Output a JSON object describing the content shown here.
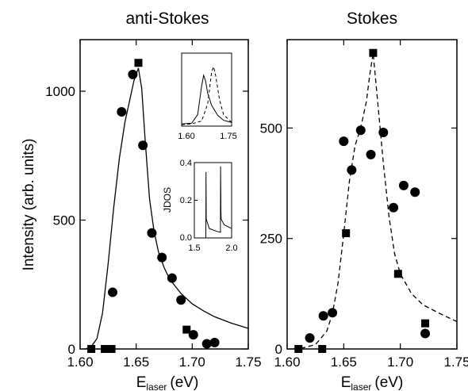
{
  "figure": {
    "ylabel": "Intensity (arb. units)",
    "inset_ylabel": "JDOS"
  },
  "chart_data": [
    {
      "type": "scatter",
      "title": "anti-Stokes",
      "xlabel": "E_laser (eV)",
      "xlabel_main": "E",
      "xlabel_sub": "laser",
      "xlabel_unit": "(eV)",
      "ylabel": "Intensity (arb. units)",
      "xlim": [
        1.6,
        1.75
      ],
      "ylim": [
        0,
        1200
      ],
      "xticks": [
        "1.60",
        "1.65",
        "1.70",
        "1.75"
      ],
      "yticks": [
        "0",
        "500",
        "1000"
      ],
      "series": [
        {
          "marker": "circle",
          "x": [
            1.629,
            1.637,
            1.647,
            1.656,
            1.664,
            1.673,
            1.682,
            1.69,
            1.701,
            1.713,
            1.72
          ],
          "y": [
            220,
            920,
            1065,
            790,
            450,
            355,
            275,
            190,
            55,
            20,
            25
          ]
        },
        {
          "marker": "square",
          "x": [
            1.61,
            1.622,
            1.628,
            1.652,
            1.695
          ],
          "y": [
            0,
            0,
            0,
            1110,
            75
          ]
        },
        {
          "marker": "line",
          "style": "solid",
          "x": [
            1.605,
            1.61,
            1.615,
            1.62,
            1.625,
            1.63,
            1.635,
            1.64,
            1.645,
            1.648,
            1.652,
            1.655,
            1.658,
            1.662,
            1.666,
            1.67,
            1.675,
            1.68,
            1.69,
            1.7,
            1.71,
            1.72,
            1.735,
            1.75
          ],
          "y": [
            0,
            10,
            40,
            140,
            330,
            550,
            740,
            880,
            980,
            1040,
            1090,
            1010,
            810,
            580,
            455,
            375,
            315,
            270,
            215,
            175,
            148,
            125,
            100,
            80
          ]
        }
      ],
      "insets": [
        {
          "type": "line",
          "xlim": [
            1.55,
            1.8
          ],
          "xticks": [
            "1.60",
            "1.75"
          ],
          "series": [
            {
              "style": "solid",
              "x": [
                1.55,
                1.6,
                1.63,
                1.65,
                1.66,
                1.67,
                1.68,
                1.7,
                1.73,
                1.76,
                1.8
              ],
              "y": [
                0.02,
                0.03,
                0.15,
                0.55,
                0.7,
                0.62,
                0.45,
                0.28,
                0.14,
                0.07,
                0.04
              ]
            },
            {
              "style": "dashed",
              "x": [
                1.55,
                1.6,
                1.65,
                1.68,
                1.7,
                1.71,
                1.72,
                1.74,
                1.76,
                1.8
              ],
              "y": [
                0.01,
                0.02,
                0.06,
                0.3,
                0.75,
                0.82,
                0.7,
                0.35,
                0.15,
                0.04
              ]
            }
          ]
        },
        {
          "type": "line",
          "ylabel": "JDOS",
          "xlim": [
            1.5,
            2.0
          ],
          "ylim": [
            0,
            0.4
          ],
          "xticks": [
            "1.5",
            "2.0"
          ],
          "yticks": [
            "0.0",
            "0.2",
            "0.4"
          ],
          "series": [
            {
              "style": "solid",
              "x": [
                1.5,
                1.64,
                1.654,
                1.656,
                1.66,
                1.7,
                1.8,
                1.85,
                1.852,
                1.856,
                1.86,
                1.9,
                1.95,
                2.0
              ],
              "y": [
                0,
                0,
                0,
                0.35,
                0.1,
                0.05,
                0.035,
                0.03,
                0.38,
                0.15,
                0.1,
                0.07,
                0.06,
                0.05
              ]
            }
          ]
        }
      ]
    },
    {
      "type": "scatter",
      "title": "Stokes",
      "xlabel": "E_laser (eV)",
      "xlabel_main": "E",
      "xlabel_sub": "laser",
      "xlabel_unit": "(eV)",
      "xlim": [
        1.6,
        1.75
      ],
      "ylim": [
        0,
        700
      ],
      "xticks": [
        "1.60",
        "1.65",
        "1.70",
        "1.75"
      ],
      "yticks": [
        "0",
        "250",
        "500"
      ],
      "series": [
        {
          "marker": "circle",
          "x": [
            1.62,
            1.632,
            1.64,
            1.65,
            1.657,
            1.665,
            1.674,
            1.685,
            1.694,
            1.703,
            1.713,
            1.722
          ],
          "y": [
            25,
            75,
            82,
            470,
            405,
            495,
            440,
            490,
            320,
            370,
            355,
            35
          ]
        },
        {
          "marker": "square",
          "x": [
            1.61,
            1.631,
            1.652,
            1.676,
            1.698,
            1.722
          ],
          "y": [
            0,
            0,
            262,
            670,
            170,
            58
          ]
        },
        {
          "marker": "line",
          "style": "dashed",
          "x": [
            1.605,
            1.615,
            1.625,
            1.635,
            1.64,
            1.645,
            1.65,
            1.655,
            1.66,
            1.665,
            1.67,
            1.673,
            1.676,
            1.68,
            1.685,
            1.69,
            1.695,
            1.7,
            1.71,
            1.72,
            1.735,
            1.75
          ],
          "y": [
            0,
            3,
            10,
            40,
            80,
            150,
            260,
            380,
            460,
            500,
            560,
            620,
            670,
            560,
            420,
            300,
            215,
            170,
            125,
            100,
            80,
            62
          ]
        }
      ]
    }
  ]
}
